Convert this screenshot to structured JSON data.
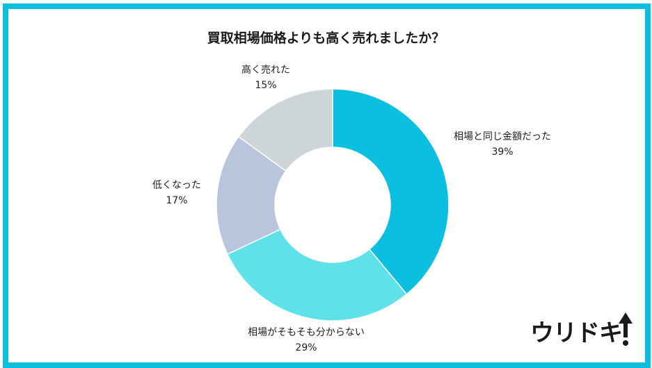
{
  "chart_data": {
    "type": "pie",
    "donut": true,
    "title": "買取相場価格よりも高く売れましたか？",
    "start_angle": "12 o'clock",
    "direction": "clockwise",
    "slices": [
      {
        "label": "相場と同じ金額だった",
        "value": 39,
        "display": "39%",
        "color": "#0bbfe0"
      },
      {
        "label": "相場がそもそも分からない",
        "value": 29,
        "display": "29%",
        "color": "#5ee1e8"
      },
      {
        "label": "低くなった",
        "value": 17,
        "display": "17%",
        "color": "#b9c5dd"
      },
      {
        "label": "高く売れた",
        "value": 15,
        "display": "15%",
        "color": "#cdd5d8"
      }
    ]
  },
  "frame_color": "#0cbfdc",
  "logo": {
    "text": "ウリドキ",
    "icon": "up-arrow-exclamation-icon"
  }
}
